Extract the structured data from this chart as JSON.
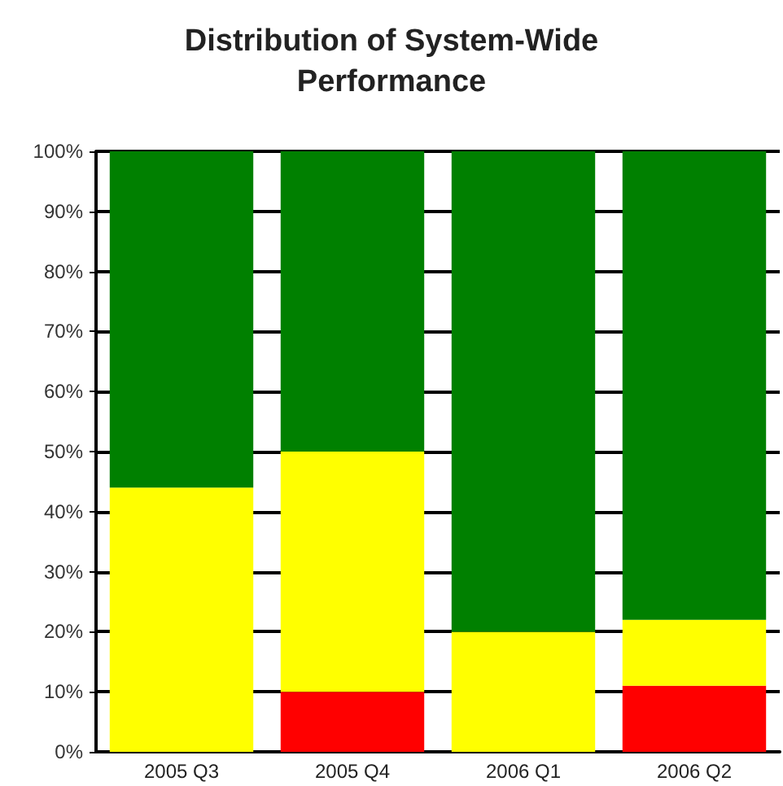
{
  "chart_data": {
    "type": "bar",
    "title": "Distribution of System-Wide\nPerformance",
    "categories": [
      "2005 Q3",
      "2005 Q4",
      "2006 Q1",
      "2006 Q2"
    ],
    "stacked": true,
    "series": [
      {
        "color": "#ff0000",
        "values": [
          0,
          10,
          0,
          11
        ]
      },
      {
        "color": "#ffff00",
        "values": [
          44,
          40,
          20,
          11
        ]
      },
      {
        "color": "#008000",
        "values": [
          56,
          50,
          80,
          78
        ]
      }
    ],
    "ylim": [
      0,
      100
    ],
    "yticks": [
      {
        "value": 0,
        "label": "0%"
      },
      {
        "value": 10,
        "label": "10%"
      },
      {
        "value": 20,
        "label": "20%"
      },
      {
        "value": 30,
        "label": "30%"
      },
      {
        "value": 40,
        "label": "40%"
      },
      {
        "value": 50,
        "label": "50%"
      },
      {
        "value": 60,
        "label": "60%"
      },
      {
        "value": 70,
        "label": "70%"
      },
      {
        "value": 80,
        "label": "80%"
      },
      {
        "value": 90,
        "label": "90%"
      },
      {
        "value": 100,
        "label": "100%"
      }
    ],
    "grid": "y"
  }
}
